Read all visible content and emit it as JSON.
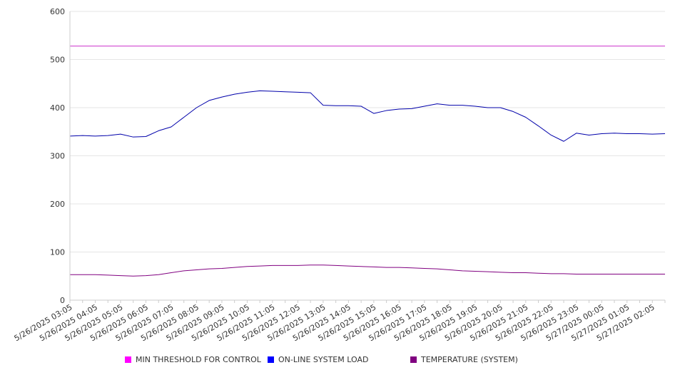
{
  "chart_data": {
    "type": "line",
    "title": "",
    "xlabel": "",
    "ylabel": "",
    "ylim": [
      0,
      600
    ],
    "yticks": [
      0,
      100,
      200,
      300,
      400,
      500,
      600
    ],
    "grid": true,
    "legend_position": "bottom",
    "x_tick_labels": [
      "5/26/2025 03:05",
      "5/26/2025 04:05",
      "5/26/2025 05:05",
      "5/26/2025 06:05",
      "5/26/2025 07:05",
      "5/26/2025 08:05",
      "5/26/2025 09:05",
      "5/26/2025 10:05",
      "5/26/2025 11:05",
      "5/26/2025 12:05",
      "5/26/2025 13:05",
      "5/26/2025 14:05",
      "5/26/2025 15:05",
      "5/26/2025 16:05",
      "5/26/2025 17:05",
      "5/26/2025 18:05",
      "5/26/2025 19:05",
      "5/26/2025 20:05",
      "5/26/2025 21:05",
      "5/26/2025 22:05",
      "5/26/2025 23:05",
      "5/27/2025 00:05",
      "5/27/2025 01:05",
      "5/27/2025 02:05"
    ],
    "x": [
      "5/26/2025 03:05",
      "5/26/2025 03:35",
      "5/26/2025 04:05",
      "5/26/2025 04:35",
      "5/26/2025 05:05",
      "5/26/2025 05:35",
      "5/26/2025 06:05",
      "5/26/2025 06:35",
      "5/26/2025 07:05",
      "5/26/2025 07:35",
      "5/26/2025 08:05",
      "5/26/2025 08:35",
      "5/26/2025 09:05",
      "5/26/2025 09:35",
      "5/26/2025 10:05",
      "5/26/2025 10:35",
      "5/26/2025 11:05",
      "5/26/2025 11:35",
      "5/26/2025 12:05",
      "5/26/2025 12:35",
      "5/26/2025 13:05",
      "5/26/2025 13:35",
      "5/26/2025 14:05",
      "5/26/2025 14:35",
      "5/26/2025 15:05",
      "5/26/2025 15:35",
      "5/26/2025 16:05",
      "5/26/2025 16:35",
      "5/26/2025 17:05",
      "5/26/2025 17:35",
      "5/26/2025 18:05",
      "5/26/2025 18:35",
      "5/26/2025 19:05",
      "5/26/2025 19:35",
      "5/26/2025 20:05",
      "5/26/2025 20:35",
      "5/26/2025 21:05",
      "5/26/2025 21:35",
      "5/26/2025 22:05",
      "5/26/2025 22:35",
      "5/26/2025 23:05",
      "5/26/2025 23:35",
      "5/27/2025 00:05",
      "5/27/2025 00:35",
      "5/27/2025 01:05",
      "5/27/2025 01:35",
      "5/27/2025 02:05",
      "5/27/2025 02:35"
    ],
    "series": [
      {
        "name": "MIN THRESHOLD FOR CONTROL",
        "color": "#cc33cc",
        "legend_color": "#ff00ff",
        "values": [
          528,
          528,
          528,
          528,
          528,
          528,
          528,
          528,
          528,
          528,
          528,
          528,
          528,
          528,
          528,
          528,
          528,
          528,
          528,
          528,
          528,
          528,
          528,
          528,
          528,
          528,
          528,
          528,
          528,
          528,
          528,
          528,
          528,
          528,
          528,
          528,
          528,
          528,
          528,
          528,
          528,
          528,
          528,
          528,
          528,
          528,
          528,
          528
        ]
      },
      {
        "name": "ON-LINE SYSTEM LOAD",
        "color": "#0000aa",
        "legend_color": "#0000ff",
        "values": [
          341,
          342,
          341,
          342,
          345,
          339,
          340,
          352,
          360,
          380,
          400,
          415,
          422,
          428,
          432,
          435,
          434,
          433,
          432,
          431,
          405,
          404,
          404,
          403,
          388,
          394,
          397,
          398,
          403,
          408,
          405,
          405,
          403,
          400,
          400,
          392,
          380,
          362,
          343,
          330,
          347,
          343,
          346,
          347,
          346,
          346,
          345,
          346
        ]
      },
      {
        "name": "TEMPERATURE (SYSTEM)",
        "color": "#800080",
        "legend_color": "#800080",
        "values": [
          53,
          53,
          53,
          52,
          51,
          50,
          51,
          53,
          57,
          61,
          63,
          65,
          66,
          68,
          70,
          71,
          72,
          72,
          72,
          73,
          73,
          72,
          71,
          70,
          69,
          68,
          68,
          67,
          66,
          65,
          63,
          61,
          60,
          59,
          58,
          57,
          57,
          56,
          55,
          55,
          54,
          54,
          54,
          54,
          54,
          54,
          54,
          54
        ]
      }
    ]
  }
}
